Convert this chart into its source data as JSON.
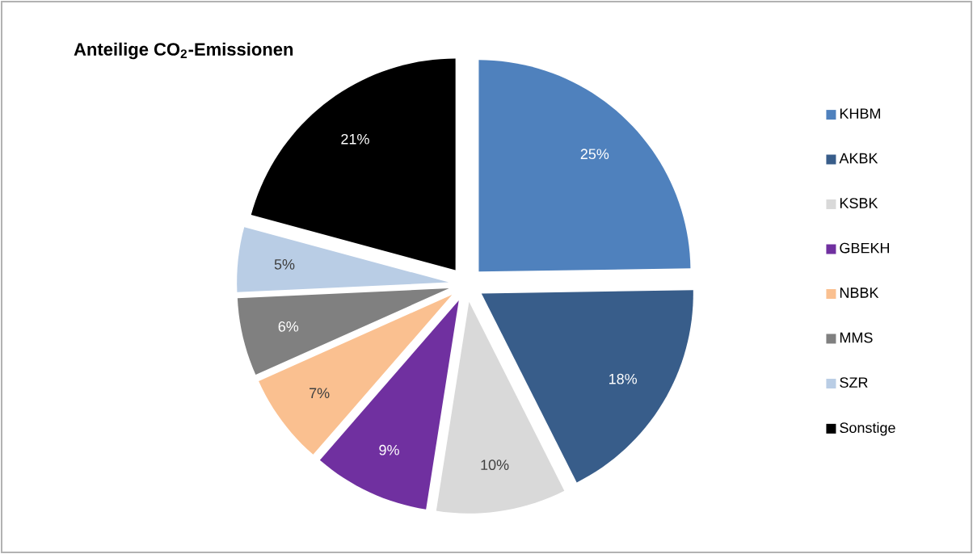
{
  "chart_data": {
    "type": "pie",
    "title": "Anteilige CO$_{2}$-Emissionen",
    "categories": [
      "KHBM",
      "AKBK",
      "KSBK",
      "GBEKH",
      "NBBK",
      "MMS",
      "SZR",
      "Sonstige"
    ],
    "values": [
      25,
      18,
      10,
      9,
      7,
      6,
      5,
      21
    ],
    "value_labels": [
      "25%",
      "18%",
      "10%",
      "9%",
      "7%",
      "6%",
      "5%",
      "21%"
    ],
    "colors": [
      "#4f81bd",
      "#385d8a",
      "#d9d9d9",
      "#7030a0",
      "#fac090",
      "#808080",
      "#b9cde5",
      "#000000"
    ],
    "legend": "right"
  }
}
